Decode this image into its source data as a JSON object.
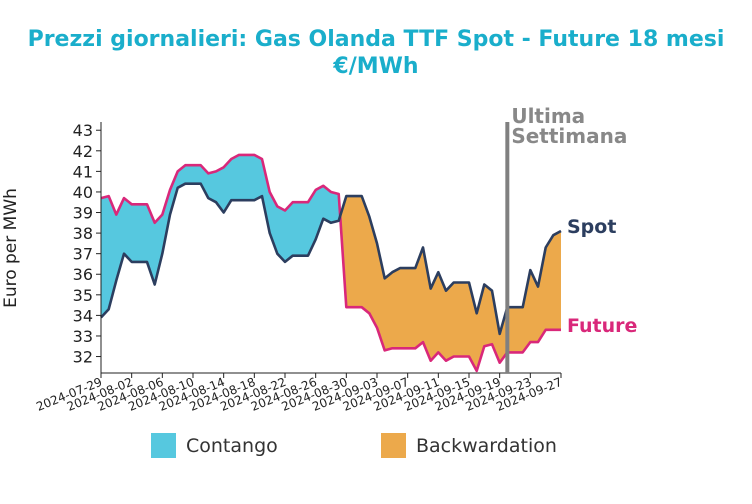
{
  "chart_data": {
    "type": "area",
    "title": "Prezzi giornalieri: Gas Olanda TTF Spot - Future 18 mesi",
    "subtitle": "€/MWh",
    "ylabel": "Euro per MWh",
    "xlabel": "",
    "ylim": [
      31.2,
      43.4
    ],
    "yticks": [
      32,
      33,
      34,
      35,
      36,
      37,
      38,
      39,
      40,
      41,
      42,
      43
    ],
    "xlim": [
      "2024-07-29",
      "2024-09-27"
    ],
    "xticks": [
      "2024-07-29",
      "2024-08-02",
      "2024-08-06",
      "2024-08-10",
      "2024-08-14",
      "2024-08-18",
      "2024-08-22",
      "2024-08-26",
      "2024-08-30",
      "2024-09-03",
      "2024-09-07",
      "2024-09-11",
      "2024-09-15",
      "2024-09-19",
      "2024-09-23",
      "2024-09-27"
    ],
    "x": [
      "2024-07-29",
      "2024-07-30",
      "2024-07-31",
      "2024-08-01",
      "2024-08-02",
      "2024-08-03",
      "2024-08-04",
      "2024-08-05",
      "2024-08-06",
      "2024-08-07",
      "2024-08-08",
      "2024-08-09",
      "2024-08-10",
      "2024-08-11",
      "2024-08-12",
      "2024-08-13",
      "2024-08-14",
      "2024-08-15",
      "2024-08-16",
      "2024-08-17",
      "2024-08-18",
      "2024-08-19",
      "2024-08-20",
      "2024-08-21",
      "2024-08-22",
      "2024-08-23",
      "2024-08-24",
      "2024-08-25",
      "2024-08-26",
      "2024-08-27",
      "2024-08-28",
      "2024-08-29",
      "2024-08-30",
      "2024-08-31",
      "2024-09-01",
      "2024-09-02",
      "2024-09-03",
      "2024-09-04",
      "2024-09-05",
      "2024-09-06",
      "2024-09-07",
      "2024-09-08",
      "2024-09-09",
      "2024-09-10",
      "2024-09-11",
      "2024-09-12",
      "2024-09-13",
      "2024-09-14",
      "2024-09-15",
      "2024-09-16",
      "2024-09-17",
      "2024-09-18",
      "2024-09-19",
      "2024-09-20",
      "2024-09-21",
      "2024-09-22",
      "2024-09-23",
      "2024-09-24",
      "2024-09-25",
      "2024-09-26",
      "2024-09-27"
    ],
    "series": [
      {
        "name": "Spot",
        "color": "#2c3e5f",
        "values": [
          33.9,
          34.3,
          35.7,
          37.0,
          36.6,
          36.6,
          36.6,
          35.5,
          37.0,
          38.9,
          40.2,
          40.4,
          40.4,
          40.4,
          39.7,
          39.5,
          39.0,
          39.6,
          39.6,
          39.6,
          39.6,
          39.8,
          38.0,
          37.0,
          36.6,
          36.9,
          36.9,
          36.9,
          37.7,
          38.7,
          38.5,
          38.6,
          39.8,
          39.8,
          39.8,
          38.8,
          37.5,
          35.8,
          36.1,
          36.3,
          36.3,
          36.3,
          37.3,
          35.3,
          36.1,
          35.2,
          35.6,
          35.6,
          35.6,
          34.1,
          35.5,
          35.2,
          33.1,
          34.4,
          34.4,
          34.4,
          36.2,
          35.4,
          37.3,
          37.9,
          38.1
        ]
      },
      {
        "name": "Future",
        "color": "#d9287a",
        "values": [
          39.7,
          39.8,
          38.9,
          39.7,
          39.4,
          39.4,
          39.4,
          38.5,
          38.9,
          40.1,
          41.0,
          41.3,
          41.3,
          41.3,
          40.9,
          41.0,
          41.2,
          41.6,
          41.8,
          41.8,
          41.8,
          41.6,
          40.0,
          39.3,
          39.1,
          39.5,
          39.5,
          39.5,
          40.1,
          40.3,
          40.0,
          39.9,
          34.4,
          34.4,
          34.4,
          34.1,
          33.4,
          32.3,
          32.4,
          32.4,
          32.4,
          32.4,
          32.7,
          31.8,
          32.2,
          31.8,
          32.0,
          32.0,
          32.0,
          31.3,
          32.5,
          32.6,
          31.7,
          32.2,
          32.2,
          32.2,
          32.7,
          32.7,
          33.3,
          33.3,
          33.3
        ]
      }
    ],
    "regions": [
      {
        "name": "Contango",
        "color": "#56c8df"
      },
      {
        "name": "Backwardation",
        "color": "#eca94b"
      }
    ],
    "legend_position": "bottom",
    "annotations": [
      {
        "text_line1": "Ultima",
        "text_line2": "Settimana",
        "x": "2024-09-20",
        "color": "#808080"
      }
    ],
    "series_labels": {
      "spot": "Spot",
      "future": "Future"
    },
    "grid": false
  }
}
